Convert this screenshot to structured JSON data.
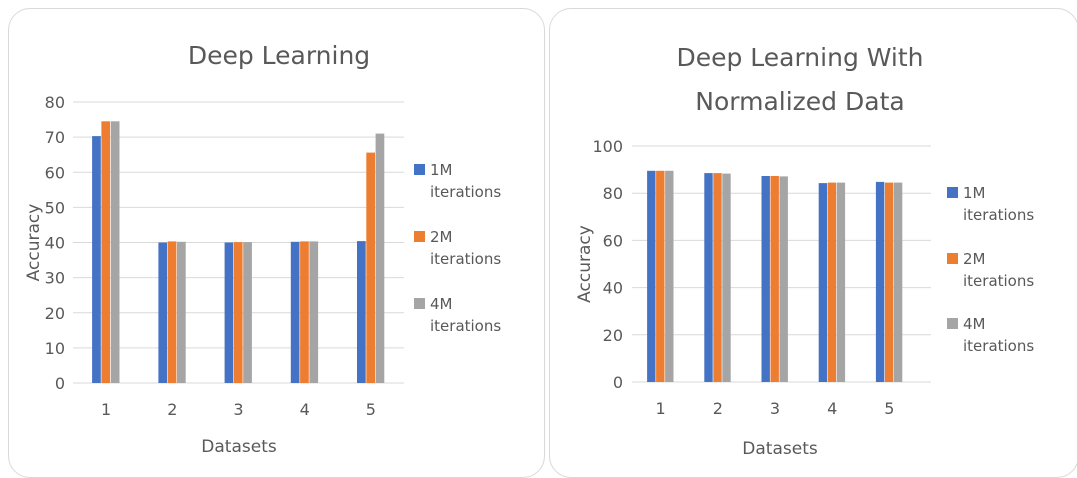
{
  "colors": {
    "1M": "#4472c4",
    "2M": "#ed7d31",
    "4M": "#a5a5a5",
    "grid": "#d9d9d9"
  },
  "chart_data": [
    {
      "type": "bar",
      "title_lines": [
        "Deep Learning"
      ],
      "xlabel": "Datasets",
      "ylabel": "Accuracy",
      "categories": [
        "1",
        "2",
        "3",
        "4",
        "5"
      ],
      "ylim": [
        0,
        80
      ],
      "yticks": [
        0,
        10,
        20,
        30,
        40,
        50,
        60,
        70,
        80
      ],
      "grid": true,
      "legend": "right",
      "series": [
        {
          "name_lines": [
            "1M",
            "iterations"
          ],
          "values": [
            70.3,
            40.0,
            40.0,
            40.2,
            40.4
          ]
        },
        {
          "name_lines": [
            "2M",
            "iterations"
          ],
          "values": [
            74.5,
            40.3,
            40.1,
            40.3,
            65.6
          ]
        },
        {
          "name_lines": [
            "4M",
            "iterations"
          ],
          "values": [
            74.5,
            40.2,
            40.1,
            40.3,
            71.0
          ]
        }
      ]
    },
    {
      "type": "bar",
      "title_lines": [
        "Deep Learning With",
        "Normalized Data"
      ],
      "xlabel": "Datasets",
      "ylabel": "Accuracy",
      "categories": [
        "1",
        "2",
        "3",
        "4",
        "5"
      ],
      "ylim": [
        0,
        100
      ],
      "yticks": [
        0,
        20,
        40,
        60,
        80,
        100
      ],
      "grid": true,
      "legend": "right",
      "series": [
        {
          "name_lines": [
            "1M",
            "iterations"
          ],
          "values": [
            89.5,
            88.5,
            87.3,
            84.3,
            84.8
          ]
        },
        {
          "name_lines": [
            "2M",
            "iterations"
          ],
          "values": [
            89.5,
            88.5,
            87.3,
            84.5,
            84.5
          ]
        },
        {
          "name_lines": [
            "4M",
            "iterations"
          ],
          "values": [
            89.5,
            88.3,
            87.1,
            84.5,
            84.5
          ]
        }
      ]
    }
  ]
}
